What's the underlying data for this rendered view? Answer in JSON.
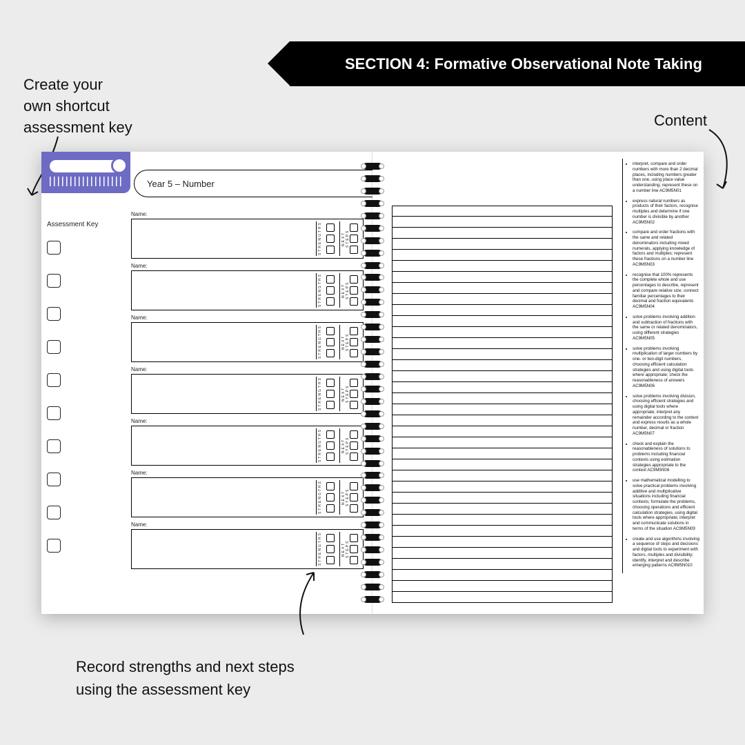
{
  "banner": {
    "text": "SECTION 4: Formative Observational Note Taking"
  },
  "callouts": {
    "top_left": "Create your\nown shortcut\nassessment key",
    "top_right": "Content",
    "bottom": "Record strengths and next steps\nusing the assessment key"
  },
  "planner": {
    "title": "Year 5 – Number",
    "assessment_key_label": "Assessment Key",
    "entry_label": "Name:",
    "entry_count": 7,
    "col_labels": {
      "strengths": "STRENGTHS",
      "next": "NEXT STEPS"
    },
    "line_count": 36,
    "content_items": [
      "interpret, compare and order numbers with more than 2 decimal places, including numbers greater than one, using place value understanding; represent these on a number line AC9M5N01",
      "express natural numbers as products of their factors, recognise multiples and determine if one number is divisible by another AC9M5N02",
      "compare and order fractions with the same and related denominators including mixed numerals, applying knowledge of factors and multiples; represent these fractions on a number line AC9M5N03",
      "recognise that 100% represents the complete whole and use percentages to describe, represent and compare relative size; connect familiar percentages to their decimal and fraction equivalents AC9M5N04",
      "solve problems involving addition and subtraction of fractions with the same or related denominators, using different strategies AC9M5N05",
      "solve problems involving multiplication of larger numbers by one- or two-digit numbers, choosing efficient calculation strategies and using digital tools where appropriate; check the reasonableness of answers AC9M5N06",
      "solve problems involving division, choosing efficient strategies and using digital tools where appropriate; interpret any remainder according to the context and express results as a whole number, decimal or fraction AC9M5N07",
      "check and explain the reasonableness of solutions to problems including financial contexts using estimation strategies appropriate to the context AC9M5N08",
      "use mathematical modelling to solve practical problems involving additive and multiplicative situations including financial contexts; formulate the problems, choosing operations and efficient calculation strategies, using digital tools where appropriate; interpret and communicate solutions in terms of the situation AC9M5N09",
      "create and use algorithms involving a sequence of steps and decisions and digital tools to experiment with factors, multiples and divisibility; identify, interpret and describe emerging patterns AC9M5N010"
    ]
  },
  "colors": {
    "bg": "#ececec",
    "accent": "#6e6bc4",
    "ink": "#111111"
  }
}
